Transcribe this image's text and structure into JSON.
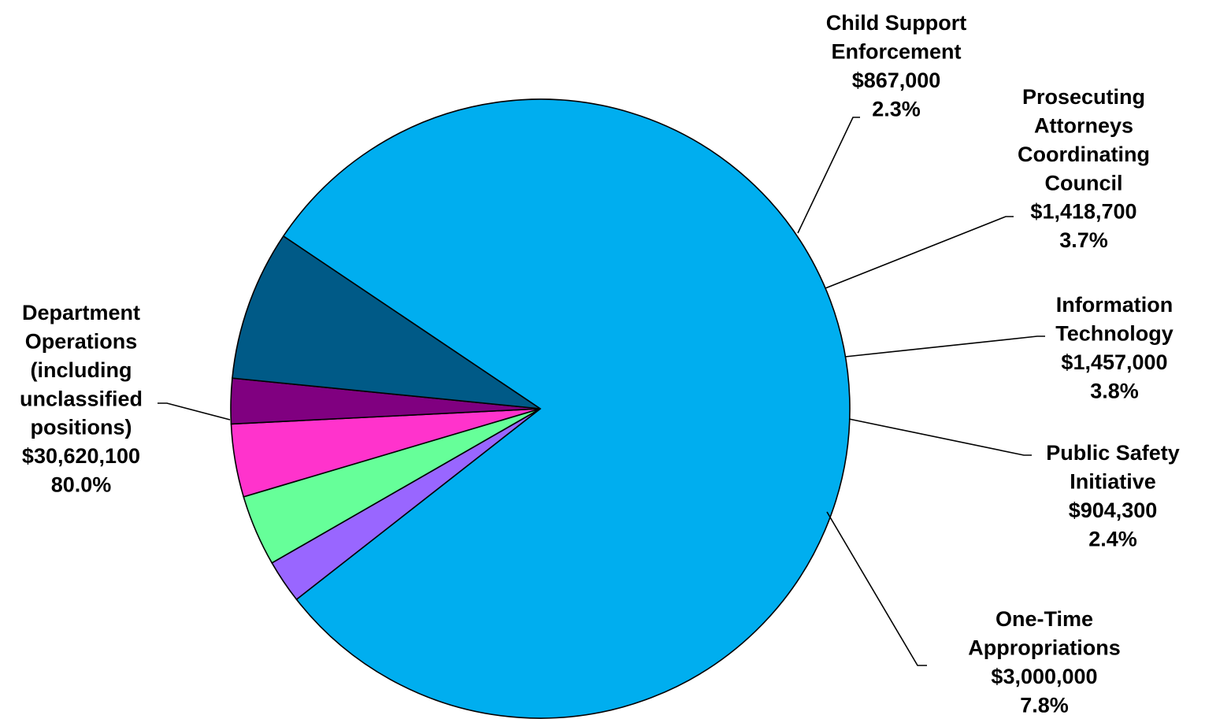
{
  "chart_data": {
    "type": "pie",
    "title": "",
    "slices": [
      {
        "label_lines": [
          "Department",
          "Operations",
          "(including",
          "unclassified",
          "positions)"
        ],
        "amount": "$30,620,100",
        "percent": "80.0%",
        "value": 30620100,
        "color": "#00AEEF"
      },
      {
        "label_lines": [
          "Child Support",
          "Enforcement"
        ],
        "amount": "$867,000",
        "percent": "2.3%",
        "value": 867000,
        "color": "#9966FF"
      },
      {
        "label_lines": [
          "Prosecuting",
          "Attorneys",
          "Coordinating",
          "Council"
        ],
        "amount": "$1,418,700",
        "percent": "3.7%",
        "value": 1418700,
        "color": "#66FF99"
      },
      {
        "label_lines": [
          "Information",
          "Technology"
        ],
        "amount": "$1,457,000",
        "percent": "3.8%",
        "value": 1457000,
        "color": "#FF33CC"
      },
      {
        "label_lines": [
          "Public Safety",
          "Initiative"
        ],
        "amount": "$904,300",
        "percent": "2.4%",
        "value": 904300,
        "color": "#800080"
      },
      {
        "label_lines": [
          "One-Time",
          "Appropriations"
        ],
        "amount": "$3,000,000",
        "percent": "7.8%",
        "value": 3000000,
        "color": "#005A87"
      }
    ]
  }
}
